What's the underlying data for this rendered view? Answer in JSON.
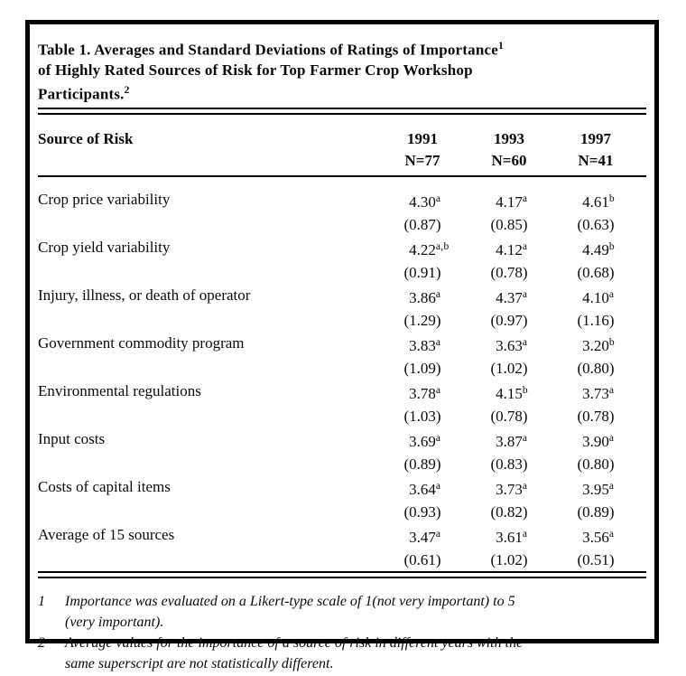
{
  "title": {
    "lines": [
      "Table 1. Averages and Standard Deviations of Ratings of Importance",
      "of Highly Rated Sources of Risk for Top Farmer Crop Workshop",
      "Participants."
    ],
    "footnote_marker_1": "1",
    "footnote_marker_2": "2"
  },
  "table": {
    "row_header": "Source of Risk",
    "columns": [
      {
        "year": "1991",
        "n": "N=77"
      },
      {
        "year": "1993",
        "n": "N=60"
      },
      {
        "year": "1997",
        "n": "N=41"
      }
    ],
    "rows": [
      {
        "label": "Crop price variability",
        "cols": [
          {
            "mean": "4.30",
            "sup": "a",
            "sd": "(0.87)"
          },
          {
            "mean": "4.17",
            "sup": "a",
            "sd": "(0.85)"
          },
          {
            "mean": "4.61",
            "sup": "b",
            "sd": "(0.63)"
          }
        ]
      },
      {
        "label": "Crop yield variability",
        "cols": [
          {
            "mean": "4.22",
            "sup": "a,b",
            "sd": "(0.91)"
          },
          {
            "mean": "4.12",
            "sup": "a",
            "sd": "(0.78)"
          },
          {
            "mean": "4.49",
            "sup": "b",
            "sd": "(0.68)"
          }
        ]
      },
      {
        "label": "Injury, illness, or death of operator",
        "cols": [
          {
            "mean": "3.86",
            "sup": "a",
            "sd": "(1.29)"
          },
          {
            "mean": "4.37",
            "sup": "a",
            "sd": "(0.97)"
          },
          {
            "mean": "4.10",
            "sup": "a",
            "sd": "(1.16)"
          }
        ]
      },
      {
        "label": "Government commodity program",
        "cols": [
          {
            "mean": "3.83",
            "sup": "a",
            "sd": "(1.09)"
          },
          {
            "mean": "3.63",
            "sup": "a",
            "sd": "(1.02)"
          },
          {
            "mean": "3.20",
            "sup": "b",
            "sd": "(0.80)"
          }
        ]
      },
      {
        "label": "Environmental regulations",
        "cols": [
          {
            "mean": "3.78",
            "sup": "a",
            "sd": "(1.03)"
          },
          {
            "mean": "4.15",
            "sup": "b",
            "sd": "(0.78)"
          },
          {
            "mean": "3.73",
            "sup": "a",
            "sd": "(0.78)"
          }
        ]
      },
      {
        "label": "Input costs",
        "cols": [
          {
            "mean": "3.69",
            "sup": "a",
            "sd": "(0.89)"
          },
          {
            "mean": "3.87",
            "sup": "a",
            "sd": "(0.83)"
          },
          {
            "mean": "3.90",
            "sup": "a",
            "sd": "(0.80)"
          }
        ]
      },
      {
        "label": "Costs of capital items",
        "cols": [
          {
            "mean": "3.64",
            "sup": "a",
            "sd": "(0.93)"
          },
          {
            "mean": "3.73",
            "sup": "a",
            "sd": "(0.82)"
          },
          {
            "mean": "3.95",
            "sup": "a",
            "sd": "(0.89)"
          }
        ]
      },
      {
        "label": "Average of 15 sources",
        "cols": [
          {
            "mean": "3.47",
            "sup": "a",
            "sd": "(0.61)"
          },
          {
            "mean": "3.61",
            "sup": "a",
            "sd": "(1.02)"
          },
          {
            "mean": "3.56",
            "sup": "a",
            "sd": "(0.51)"
          }
        ]
      }
    ]
  },
  "footnotes": [
    {
      "marker": "1",
      "lines": [
        "Importance was evaluated on a Likert-type scale of 1(not very important) to 5",
        "(very important)."
      ]
    },
    {
      "marker": "2",
      "lines": [
        "Average values for the importance of a source of risk in different years with the",
        "same superscript are not statistically different."
      ]
    }
  ],
  "colors": {
    "text": "#0a0a0a",
    "border": "#000000",
    "background": "#ffffff"
  }
}
